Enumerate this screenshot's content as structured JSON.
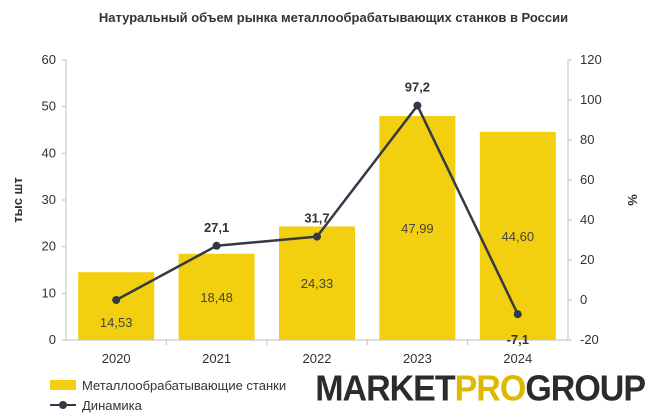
{
  "chart_data": {
    "type": "bar",
    "title": "Натуральный объем рынка металлообрабатывающих станков в России",
    "categories": [
      "2020",
      "2021",
      "2022",
      "2023",
      "2024"
    ],
    "ylabel": "тыс шт",
    "y2label": "%",
    "ylim": [
      0,
      60
    ],
    "y2lim": [
      -20,
      120
    ],
    "yticks": [
      "0",
      "10",
      "20",
      "30",
      "40",
      "50",
      "60"
    ],
    "y2ticks": [
      "-20",
      "0",
      "20",
      "40",
      "60",
      "80",
      "100",
      "120"
    ],
    "series": [
      {
        "name": "Металлообрабатывающие станки",
        "kind": "bar",
        "axis": "left",
        "color": "#f2cf0f",
        "values": [
          14.53,
          18.48,
          24.33,
          47.99,
          44.6
        ],
        "labels": [
          "14,53",
          "18,48",
          "24,33",
          "47,99",
          "44,60"
        ]
      },
      {
        "name": "Динамика",
        "kind": "line",
        "axis": "right",
        "color": "#333a45",
        "values": [
          0,
          27.1,
          31.7,
          97.2,
          -7.1
        ],
        "labels": [
          "",
          "27,1",
          "31,7",
          "97,2",
          "-7,1"
        ]
      }
    ],
    "legend": "bottom-left",
    "grid": false
  },
  "brand": {
    "part1": "MARKET",
    "part2": "PRO",
    "part3": "GROUP",
    "color_main": "#2b2b2b",
    "color_accent": "#e0b800"
  }
}
